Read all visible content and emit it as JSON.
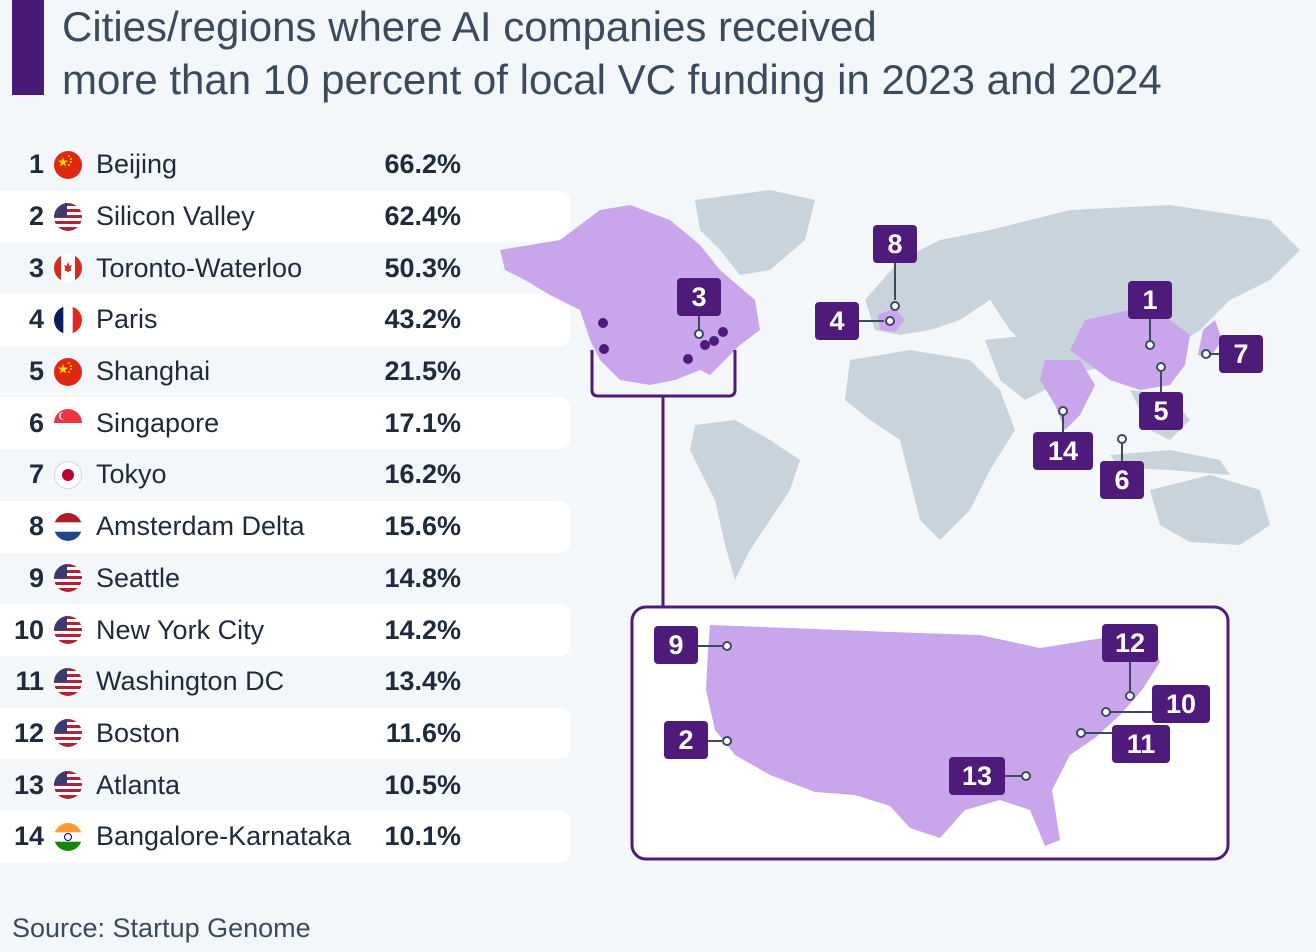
{
  "title_line1": "Cities/regions where AI companies received",
  "title_line2": "more than 10 percent of local VC funding in 2023 and 2024",
  "source": "Source: Startup Genome",
  "colors": {
    "accent": "#4a1a78",
    "highlight": "#c9a5ec",
    "land": "#c9d3dc",
    "marker": "#4f1b7a"
  },
  "rows": [
    {
      "rank": "1",
      "city": "Beijing",
      "pct": "66.2%",
      "flag": "china"
    },
    {
      "rank": "2",
      "city": "Silicon Valley",
      "pct": "62.4%",
      "flag": "usa"
    },
    {
      "rank": "3",
      "city": "Toronto-Waterloo",
      "pct": "50.3%",
      "flag": "canada"
    },
    {
      "rank": "4",
      "city": "Paris",
      "pct": "43.2%",
      "flag": "france"
    },
    {
      "rank": "5",
      "city": "Shanghai",
      "pct": "21.5%",
      "flag": "china"
    },
    {
      "rank": "6",
      "city": "Singapore",
      "pct": "17.1%",
      "flag": "singapore"
    },
    {
      "rank": "7",
      "city": "Tokyo",
      "pct": "16.2%",
      "flag": "japan"
    },
    {
      "rank": "8",
      "city": "Amsterdam Delta",
      "pct": "15.6%",
      "flag": "netherlands"
    },
    {
      "rank": "9",
      "city": "Seattle",
      "pct": "14.8%",
      "flag": "usa"
    },
    {
      "rank": "10",
      "city": "New York City",
      "pct": "14.2%",
      "flag": "usa"
    },
    {
      "rank": "11",
      "city": "Washington DC",
      "pct": "13.4%",
      "flag": "usa"
    },
    {
      "rank": "12",
      "city": "Boston",
      "pct": "11.6%",
      "flag": "usa"
    },
    {
      "rank": "13",
      "city": "Atlanta",
      "pct": "10.5%",
      "flag": "usa"
    },
    {
      "rank": "14",
      "city": "Bangalore-Karnataka",
      "pct": "10.1%",
      "flag": "india"
    }
  ],
  "map_markers": {
    "world": [
      "1",
      "3",
      "4",
      "5",
      "6",
      "7",
      "8",
      "14"
    ],
    "usa_inset": [
      "2",
      "9",
      "10",
      "11",
      "12",
      "13"
    ]
  }
}
